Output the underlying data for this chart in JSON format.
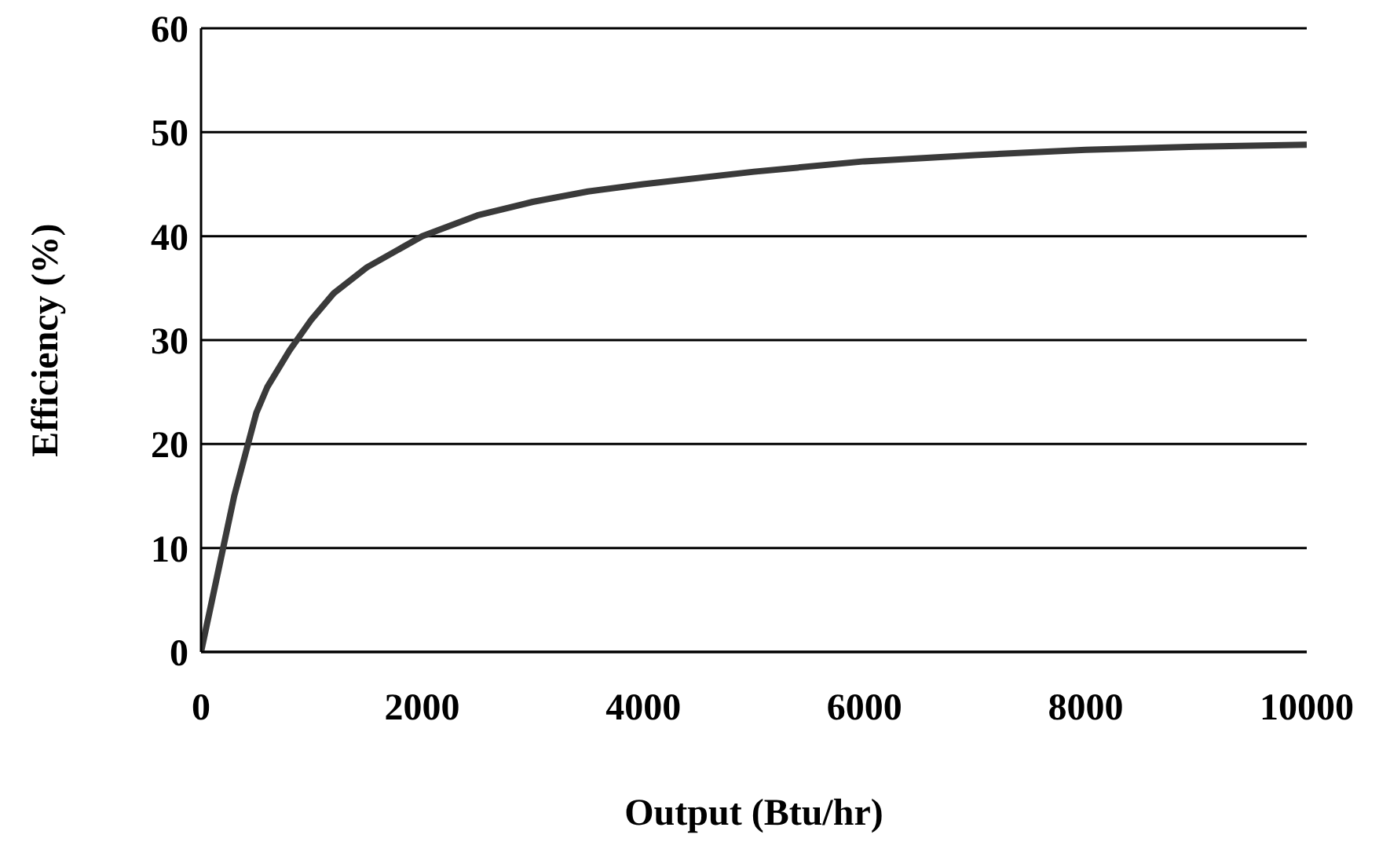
{
  "chart_data": {
    "type": "line",
    "xlabel": "Output (Btu/hr)",
    "ylabel": "Efficiency (%)",
    "x": [
      0,
      50,
      100,
      200,
      300,
      400,
      500,
      600,
      800,
      1000,
      1200,
      1500,
      2000,
      2500,
      3000,
      3500,
      4000,
      5000,
      6000,
      7000,
      8000,
      9000,
      10000
    ],
    "series": [
      {
        "color": "#3a3a3a",
        "values": [
          0,
          2.5,
          5,
          10,
          15,
          19,
          23,
          25.5,
          29,
          32,
          34.5,
          37,
          40,
          42,
          43.3,
          44.3,
          45,
          46.2,
          47.2,
          47.8,
          48.3,
          48.6,
          48.8
        ]
      }
    ],
    "xlim": [
      0,
      10000
    ],
    "xticks": [
      0,
      2000,
      4000,
      6000,
      8000,
      10000
    ],
    "ylim": [
      0,
      60
    ],
    "yticks": [
      0,
      10,
      20,
      30,
      40,
      50,
      60
    ],
    "grid": "y",
    "legend": false,
    "marker": "none",
    "line_style": "solid"
  }
}
